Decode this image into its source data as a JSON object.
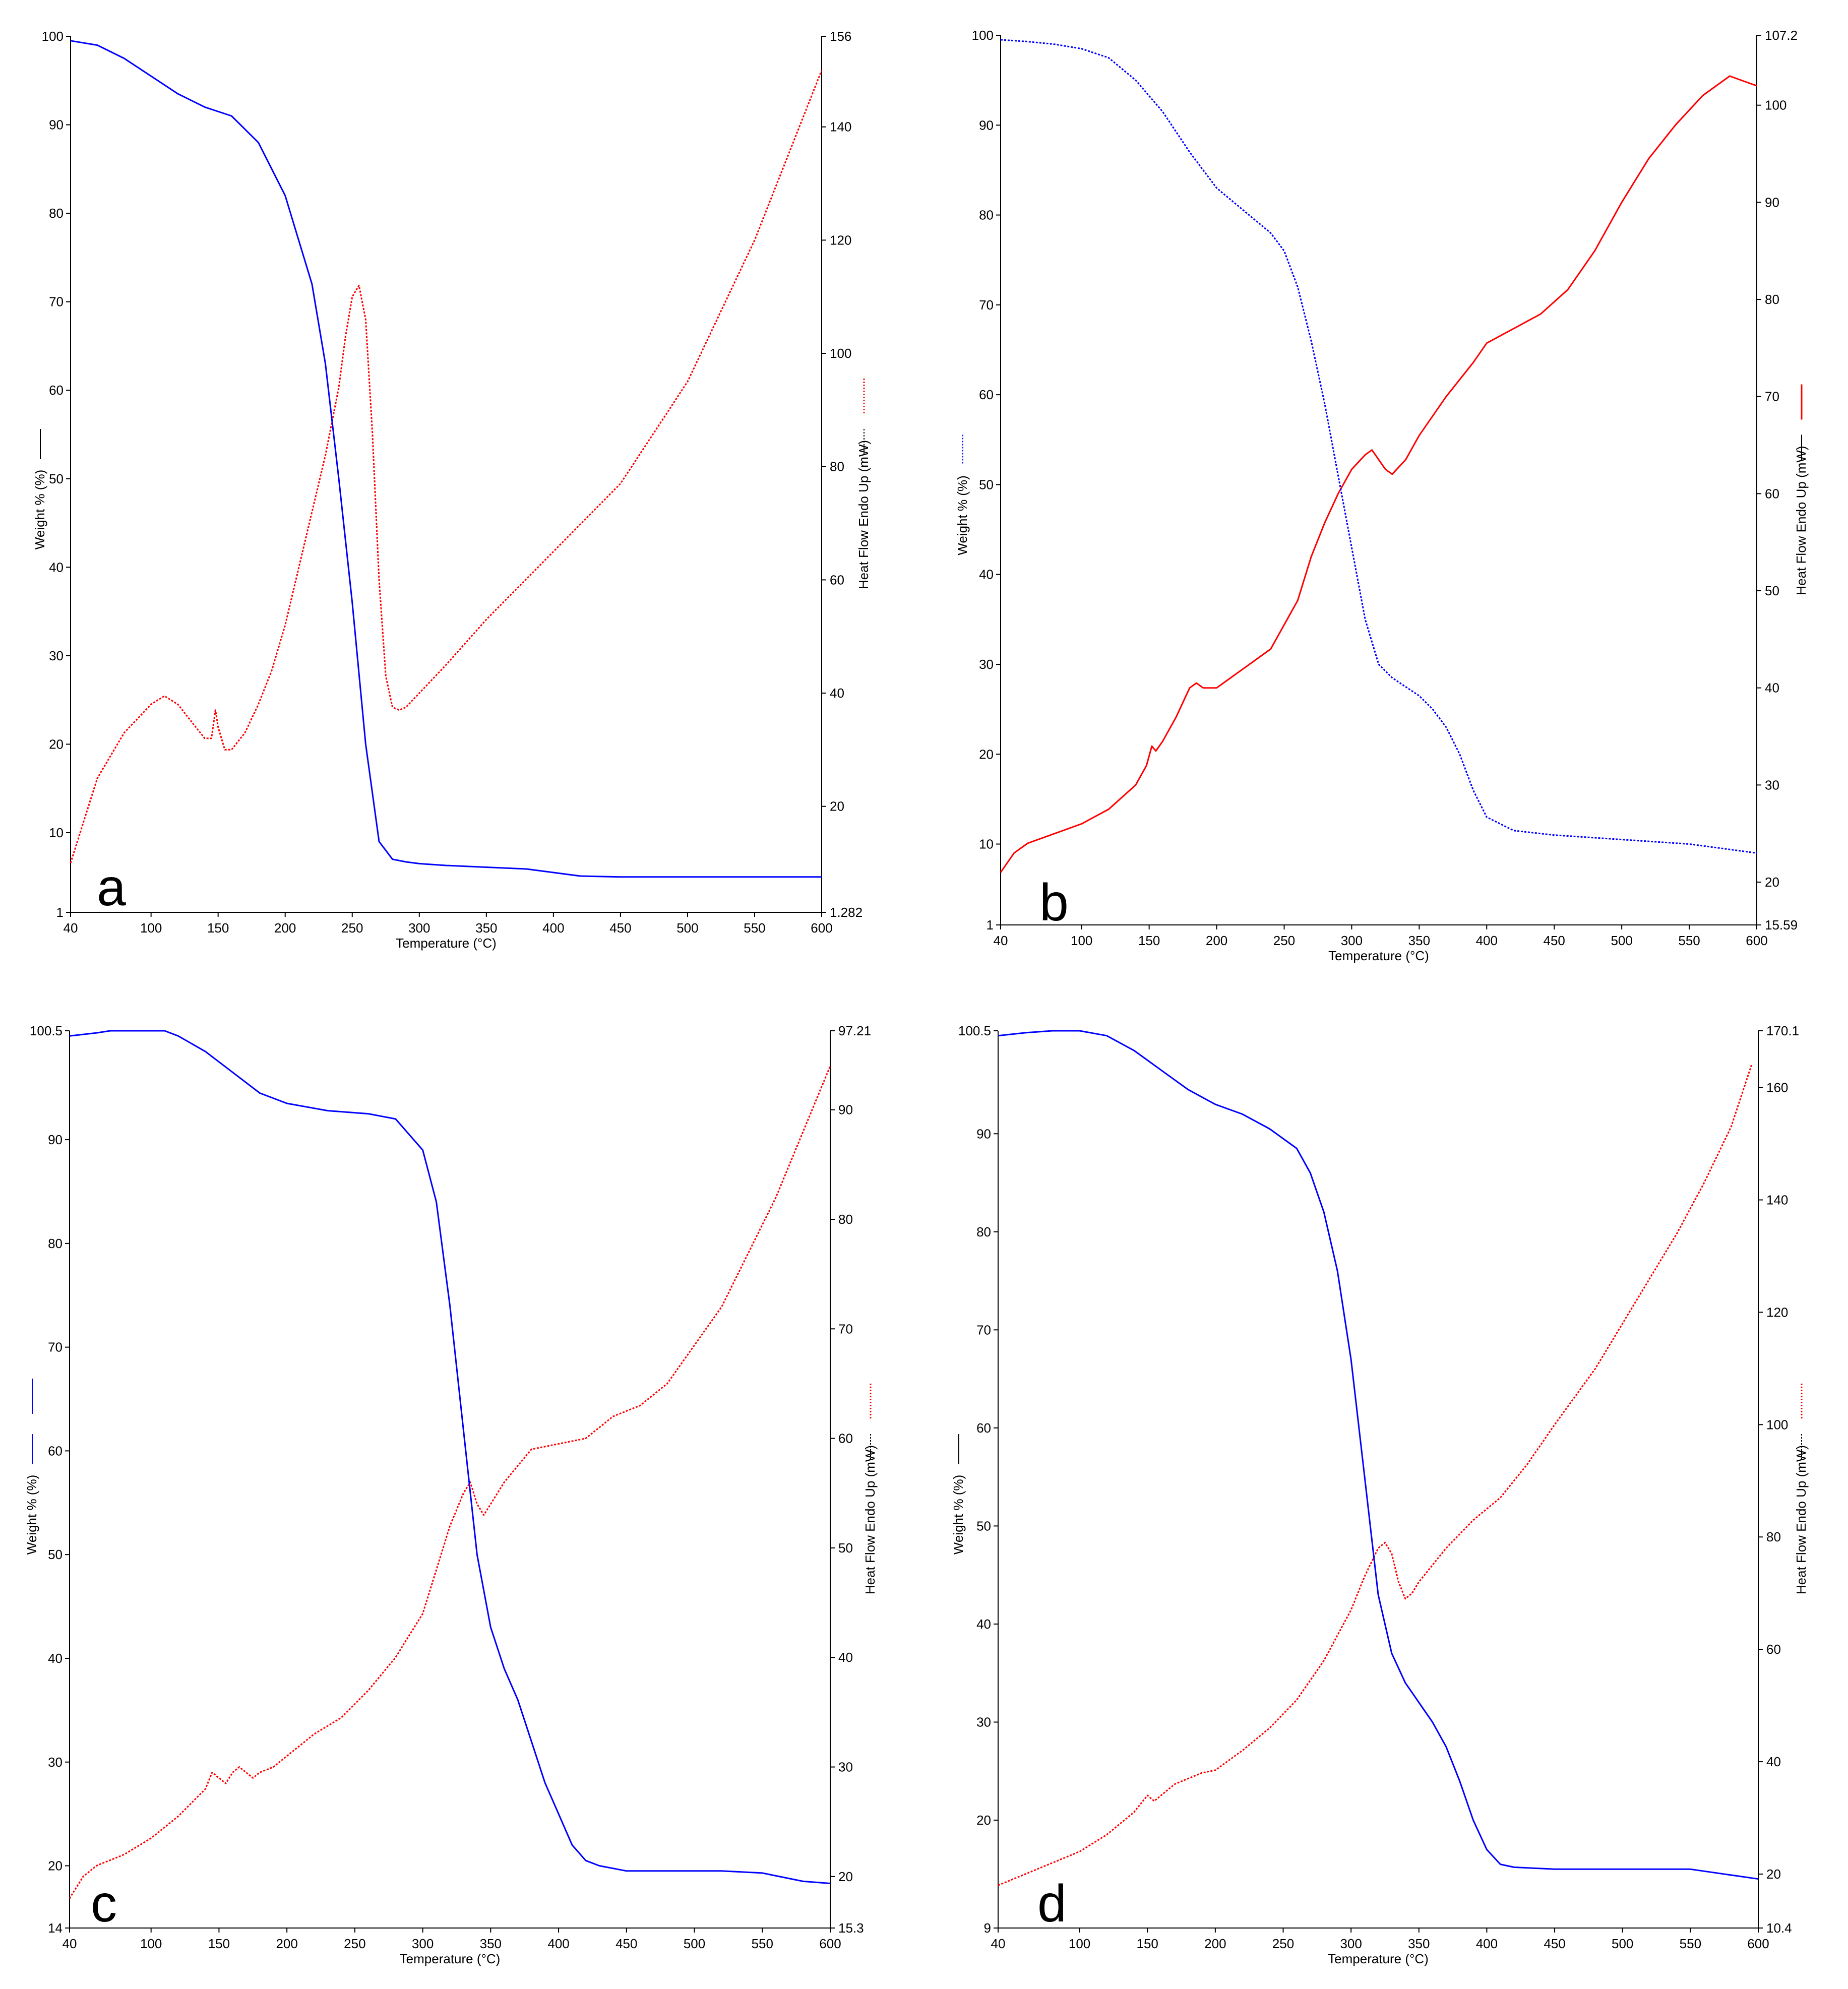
{
  "chart_data": [
    {
      "panel": "a",
      "type": "line",
      "xlabel": "Temperature (°C)",
      "ylabel_left": "Weight % (%)",
      "ylabel_right": "Heat Flow Endo Up (mW)",
      "xlim": [
        40,
        600
      ],
      "ylim_left": [
        1,
        100
      ],
      "ylim_right": [
        1.282,
        156
      ],
      "x_ticks": [
        40,
        100,
        150,
        200,
        250,
        300,
        350,
        400,
        450,
        500,
        550,
        600
      ],
      "y_left_ticks": [
        1,
        10,
        20,
        30,
        40,
        50,
        60,
        70,
        80,
        90,
        100
      ],
      "y_left_tick_labels": [
        "1",
        "10",
        "20",
        "30",
        "40",
        "50",
        "60",
        "70",
        "80",
        "90",
        "100"
      ],
      "y_right_ticks": [
        1.282,
        20,
        40,
        60,
        80,
        100,
        120,
        140,
        156
      ],
      "y_right_tick_labels": [
        "1.282",
        "20",
        "40",
        "60",
        "80",
        "100",
        "120",
        "140",
        "156"
      ],
      "weight_style": "solid",
      "heat_style": "dotted",
      "colors": {
        "weight": "#0000ff",
        "heat": "#ff0000"
      },
      "weight": {
        "x": [
          40,
          60,
          80,
          100,
          120,
          140,
          160,
          180,
          200,
          220,
          230,
          240,
          250,
          260,
          270,
          280,
          290,
          300,
          320,
          350,
          380,
          400,
          420,
          450,
          500,
          550,
          600
        ],
        "y": [
          99.5,
          99,
          97.5,
          95.5,
          93.5,
          92,
          91,
          88,
          82,
          72,
          63,
          50,
          36,
          20,
          9,
          7,
          6.7,
          6.5,
          6.3,
          6.1,
          5.9,
          5.5,
          5.1,
          5,
          5,
          5,
          5
        ]
      },
      "heat": {
        "x": [
          40,
          60,
          80,
          100,
          110,
          120,
          130,
          140,
          145,
          148,
          150,
          155,
          160,
          170,
          180,
          190,
          200,
          210,
          220,
          230,
          240,
          245,
          250,
          255,
          260,
          265,
          270,
          275,
          280,
          285,
          290,
          300,
          320,
          350,
          400,
          450,
          500,
          550,
          600
        ],
        "y": [
          10,
          25,
          33,
          38,
          39.5,
          38,
          35,
          32,
          32,
          37,
          34,
          30,
          30,
          33,
          38,
          44,
          52,
          62,
          72,
          82,
          94,
          103,
          110,
          112,
          106,
          86,
          60,
          43,
          37.5,
          37,
          37.5,
          40,
          45,
          53,
          65,
          77,
          95,
          120,
          150
        ]
      }
    },
    {
      "panel": "b",
      "type": "line",
      "xlabel": "Temperature (°C)",
      "ylabel_left": "Weight % (%)",
      "ylabel_right": "Heat Flow Endo Up (mW)",
      "xlim": [
        40,
        600
      ],
      "ylim_left": [
        1,
        100
      ],
      "ylim_right": [
        15.59,
        107.2
      ],
      "x_ticks": [
        40,
        100,
        150,
        200,
        250,
        300,
        350,
        400,
        450,
        500,
        550,
        600
      ],
      "y_left_ticks": [
        1,
        10,
        20,
        30,
        40,
        50,
        60,
        70,
        80,
        90,
        100
      ],
      "y_left_tick_labels": [
        "1",
        "10",
        "20",
        "30",
        "40",
        "50",
        "60",
        "70",
        "80",
        "90",
        "100"
      ],
      "y_right_ticks": [
        15.59,
        20,
        30,
        40,
        50,
        60,
        70,
        80,
        90,
        100,
        107.2
      ],
      "y_right_tick_labels": [
        "15.59",
        "20",
        "30",
        "40",
        "50",
        "60",
        "70",
        "80",
        "90",
        "100",
        "107.2"
      ],
      "weight_style": "dotted",
      "heat_style": "solid",
      "colors": {
        "weight": "#0000ff",
        "heat": "#ff0000"
      },
      "weight": {
        "x": [
          40,
          60,
          80,
          100,
          120,
          140,
          160,
          180,
          200,
          220,
          240,
          250,
          260,
          270,
          280,
          290,
          300,
          310,
          320,
          330,
          340,
          350,
          360,
          370,
          380,
          390,
          400,
          420,
          450,
          500,
          550,
          600
        ],
        "y": [
          99.5,
          99.3,
          99,
          98.5,
          97.5,
          95,
          91.5,
          87,
          83,
          80.5,
          78,
          76,
          72,
          66,
          59,
          51,
          43,
          35,
          30,
          28.5,
          27.5,
          26.5,
          25,
          23,
          20,
          16,
          13,
          11.5,
          11,
          10.5,
          10,
          9
        ]
      },
      "heat": {
        "x": [
          40,
          50,
          60,
          80,
          100,
          120,
          140,
          148,
          152,
          155,
          160,
          170,
          180,
          185,
          190,
          200,
          210,
          220,
          230,
          240,
          250,
          260,
          270,
          280,
          290,
          300,
          310,
          315,
          320,
          325,
          330,
          340,
          350,
          370,
          390,
          400,
          420,
          440,
          460,
          480,
          500,
          520,
          540,
          560,
          580,
          590,
          600
        ],
        "y": [
          21,
          23,
          24,
          25,
          26,
          27.5,
          30,
          32,
          34,
          33.5,
          34.5,
          37,
          40,
          40.5,
          40,
          40,
          41,
          42,
          43,
          44,
          46.5,
          49,
          53.5,
          57,
          60,
          62.5,
          64,
          64.5,
          63.5,
          62.5,
          62,
          63.5,
          66,
          70,
          73.5,
          75.5,
          77,
          78.5,
          81,
          85,
          90,
          94.5,
          98,
          101,
          103,
          102.5,
          102
        ]
      }
    },
    {
      "panel": "c",
      "type": "line",
      "xlabel": "Temperature (°C)",
      "ylabel_left": "Weight % (%)",
      "ylabel_right": "Heat Flow Endo Up (mW)",
      "xlim": [
        40,
        600
      ],
      "ylim_left": [
        14,
        100.5
      ],
      "ylim_right": [
        15.3,
        97.21
      ],
      "x_ticks": [
        40,
        100,
        150,
        200,
        250,
        300,
        350,
        400,
        450,
        500,
        550,
        600
      ],
      "y_left_ticks": [
        14,
        20,
        30,
        40,
        50,
        60,
        70,
        80,
        90,
        100.5
      ],
      "y_left_tick_labels": [
        "14",
        "20",
        "30",
        "40",
        "50",
        "60",
        "70",
        "80",
        "90",
        "100.5"
      ],
      "y_right_ticks": [
        15.3,
        20,
        30,
        40,
        50,
        60,
        70,
        80,
        90,
        97.21
      ],
      "y_right_tick_labels": [
        "15.3",
        "20",
        "30",
        "40",
        "50",
        "60",
        "70",
        "80",
        "90",
        "97.21"
      ],
      "weight_style": "solid",
      "heat_style": "dotted",
      "colors": {
        "weight": "#0000ff",
        "heat": "#ff0000"
      },
      "weight": {
        "x": [
          40,
          60,
          70,
          110,
          120,
          140,
          160,
          180,
          200,
          230,
          260,
          280,
          300,
          310,
          320,
          330,
          340,
          350,
          360,
          370,
          380,
          390,
          400,
          410,
          420,
          430,
          450,
          480,
          520,
          550,
          580,
          600
        ],
        "y": [
          100,
          100.3,
          100.5,
          100.5,
          100,
          98.5,
          96.5,
          94.5,
          93.5,
          92.8,
          92.5,
          92,
          89,
          84,
          74,
          62,
          50,
          43,
          39,
          36,
          32,
          28,
          25,
          22,
          20.5,
          20,
          19.5,
          19.5,
          19.5,
          19.3,
          18.5,
          18.3
        ]
      },
      "heat": {
        "x": [
          40,
          50,
          60,
          80,
          100,
          120,
          140,
          145,
          150,
          155,
          160,
          165,
          170,
          175,
          180,
          190,
          200,
          210,
          220,
          240,
          260,
          280,
          300,
          310,
          320,
          330,
          335,
          340,
          345,
          350,
          360,
          380,
          400,
          420,
          440,
          460,
          480,
          500,
          520,
          540,
          560,
          580,
          600
        ],
        "y": [
          18,
          20,
          21,
          22,
          23.5,
          25.5,
          28,
          29.5,
          29,
          28.5,
          29.5,
          30,
          29.5,
          29,
          29.5,
          30,
          31,
          32,
          33,
          34.5,
          37,
          40,
          44,
          48,
          52,
          55,
          56,
          54,
          53,
          54,
          56,
          59,
          59.5,
          60,
          62,
          63,
          65,
          68.5,
          72,
          77,
          82,
          88,
          94
        ]
      }
    },
    {
      "panel": "d",
      "type": "line",
      "xlabel": "Temperature (°C)",
      "ylabel_left": "Weight % (%)",
      "ylabel_right": "Heat Flow Endo Up (mW)",
      "xlim": [
        40,
        600
      ],
      "ylim_left": [
        9,
        100.5
      ],
      "ylim_right": [
        10.4,
        170.1
      ],
      "x_ticks": [
        40,
        100,
        150,
        200,
        250,
        300,
        350,
        400,
        450,
        500,
        550,
        600
      ],
      "y_left_ticks": [
        9,
        20,
        30,
        40,
        50,
        60,
        70,
        80,
        90,
        100.5
      ],
      "y_left_tick_labels": [
        "9",
        "20",
        "30",
        "40",
        "50",
        "60",
        "70",
        "80",
        "90",
        "100.5"
      ],
      "y_right_ticks": [
        10.4,
        20,
        40,
        60,
        80,
        100,
        120,
        140,
        160,
        170.1
      ],
      "y_right_tick_labels": [
        "10.4",
        "20",
        "40",
        "60",
        "80",
        "100",
        "120",
        "140",
        "160",
        "170.1"
      ],
      "weight_style": "solid",
      "heat_style": "dotted",
      "colors": {
        "weight": "#0000ff",
        "heat": "#ff0000"
      },
      "weight": {
        "x": [
          40,
          60,
          80,
          100,
          120,
          140,
          160,
          180,
          200,
          220,
          240,
          260,
          270,
          280,
          290,
          300,
          310,
          320,
          330,
          340,
          350,
          360,
          370,
          380,
          390,
          400,
          410,
          420,
          450,
          500,
          550,
          600
        ],
        "y": [
          100,
          100.3,
          100.5,
          100.5,
          100,
          98.5,
          96.5,
          94.5,
          93,
          92,
          90.5,
          88.5,
          86,
          82,
          76,
          67,
          55,
          43,
          37,
          34,
          32,
          30,
          27.5,
          24,
          20,
          17,
          15.5,
          15.2,
          15,
          15,
          15,
          14
        ]
      },
      "heat": {
        "x": [
          40,
          60,
          80,
          100,
          120,
          140,
          150,
          155,
          160,
          170,
          180,
          190,
          200,
          220,
          240,
          260,
          280,
          300,
          310,
          320,
          325,
          330,
          335,
          340,
          345,
          350,
          370,
          390,
          410,
          430,
          450,
          480,
          500,
          520,
          540,
          560,
          580,
          595
        ],
        "y": [
          18,
          20,
          22,
          24,
          27,
          31,
          34,
          33,
          34,
          36,
          37,
          38,
          38.5,
          42,
          46,
          51,
          58,
          67,
          73,
          78,
          79,
          77,
          72,
          69,
          70,
          72,
          78,
          83,
          87,
          93,
          100,
          110,
          118,
          126,
          134,
          143,
          153,
          164
        ]
      }
    }
  ]
}
